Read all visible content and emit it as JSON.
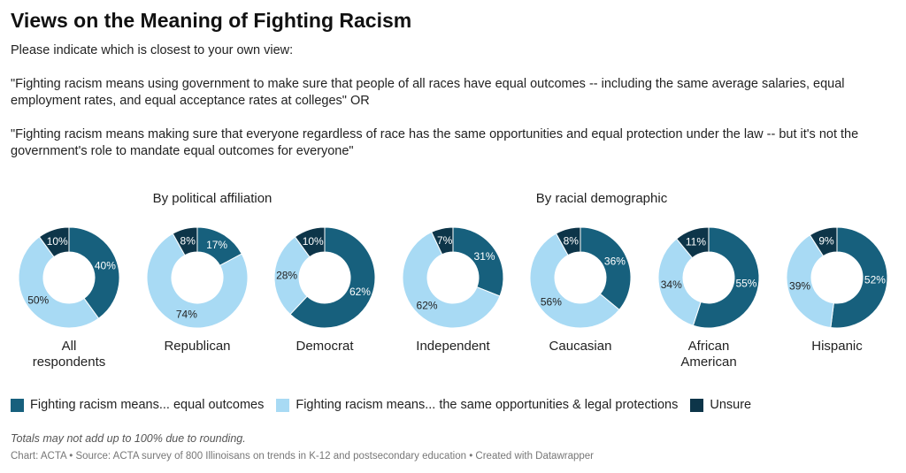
{
  "title": "Views on the Meaning of Fighting Racism",
  "intro": "Please indicate which is closest to your own view:",
  "option_a": "\"Fighting racism means using government to make sure that people of all races have equal outcomes -- including the same average salaries, equal employment rates, and equal acceptance rates at colleges\" OR",
  "option_b": "\"Fighting racism means making sure that everyone regardless of race has the same opportunities and equal protection under the law -- but it's not the government's role to mandate equal outcomes for everyone\"",
  "groups": {
    "political": "By political affiliation",
    "racial": "By racial demographic"
  },
  "legend": [
    {
      "label": "Fighting racism means... equal outcomes",
      "color": "#17607d"
    },
    {
      "label": "Fighting racism means... the same opportunities & legal protections",
      "color": "#a8daf4"
    },
    {
      "label": "Unsure",
      "color": "#0d3549"
    }
  ],
  "notes": "Totals may not add up to 100% due to rounding.",
  "footer": "Chart: ACTA • Source: ACTA survey of 800 Illinoisans on trends in K-12 and postsecondary education • Created with Datawrapper",
  "chart_data": {
    "type": "donut",
    "series_names": [
      "Fighting racism means... equal outcomes",
      "Fighting racism means... the same opportunities & legal protections",
      "Unsure"
    ],
    "colors": [
      "#17607d",
      "#a8daf4",
      "#0d3549"
    ],
    "label_colors": [
      "#ffffff",
      "#222222",
      "#ffffff"
    ],
    "charts": [
      {
        "label": "All respondents",
        "values": [
          40,
          50,
          10
        ]
      },
      {
        "label": "Republican",
        "values": [
          17,
          74,
          8
        ]
      },
      {
        "label": "Democrat",
        "values": [
          62,
          28,
          10
        ]
      },
      {
        "label": "Independent",
        "values": [
          31,
          62,
          7
        ]
      },
      {
        "label": "Caucasian",
        "values": [
          36,
          56,
          8
        ]
      },
      {
        "label": "African American",
        "values": [
          55,
          34,
          11
        ]
      },
      {
        "label": "Hispanic",
        "values": [
          52,
          39,
          9
        ]
      }
    ]
  }
}
